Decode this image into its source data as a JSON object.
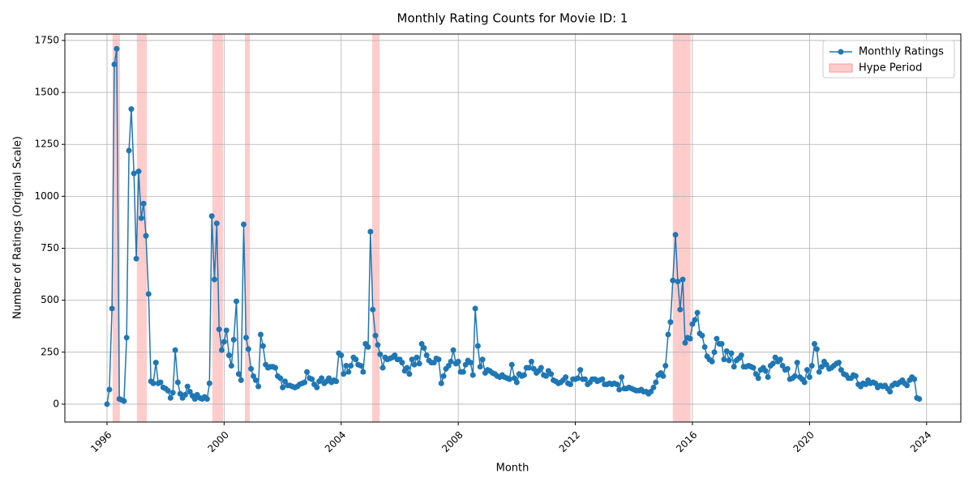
{
  "chart_data": {
    "type": "line",
    "title": "Monthly Rating Counts for Movie ID: 1",
    "x_label": "Month",
    "y_label": "Number of Ratings (Original Scale)",
    "x": [
      1996.0,
      1996.08,
      1996.17,
      1996.25,
      1996.33,
      1996.42,
      1996.5,
      1996.58,
      1996.67,
      1996.75,
      1996.83,
      1996.92,
      1997.0,
      1997.08,
      1997.17,
      1997.25,
      1997.33,
      1997.42,
      1997.5,
      1997.58,
      1997.67,
      1997.75,
      1997.83,
      1997.92,
      1998.0,
      1998.08,
      1998.17,
      1998.25,
      1998.33,
      1998.42,
      1998.5,
      1998.58,
      1998.67,
      1998.75,
      1998.83,
      1998.92,
      1999.0,
      1999.08,
      1999.17,
      1999.25,
      1999.33,
      1999.42,
      1999.5,
      1999.58,
      1999.67,
      1999.75,
      1999.83,
      1999.92,
      2000.0,
      2000.08,
      2000.17,
      2000.25,
      2000.33,
      2000.42,
      2000.5,
      2000.58,
      2000.67,
      2000.75,
      2000.83,
      2000.92,
      2001.0,
      2001.08,
      2001.17,
      2001.25,
      2001.33,
      2001.42,
      2001.5,
      2001.58,
      2001.67,
      2001.75,
      2001.83,
      2001.92,
      2002.0,
      2002.08,
      2002.17,
      2002.25,
      2002.33,
      2002.42,
      2002.5,
      2002.58,
      2002.67,
      2002.75,
      2002.83,
      2002.92,
      2003.0,
      2003.08,
      2003.17,
      2003.25,
      2003.33,
      2003.42,
      2003.5,
      2003.58,
      2003.67,
      2003.75,
      2003.83,
      2003.92,
      2004.0,
      2004.08,
      2004.17,
      2004.25,
      2004.33,
      2004.42,
      2004.5,
      2004.58,
      2004.67,
      2004.75,
      2004.83,
      2004.92,
      2005.0,
      2005.08,
      2005.17,
      2005.25,
      2005.33,
      2005.42,
      2005.5,
      2005.58,
      2005.67,
      2005.75,
      2005.83,
      2005.92,
      2006.0,
      2006.08,
      2006.17,
      2006.25,
      2006.33,
      2006.42,
      2006.5,
      2006.58,
      2006.67,
      2006.75,
      2006.83,
      2006.92,
      2007.0,
      2007.08,
      2007.17,
      2007.25,
      2007.33,
      2007.42,
      2007.5,
      2007.58,
      2007.67,
      2007.75,
      2007.83,
      2007.92,
      2008.0,
      2008.08,
      2008.17,
      2008.25,
      2008.33,
      2008.42,
      2008.5,
      2008.58,
      2008.67,
      2008.75,
      2008.83,
      2008.92,
      2009.0,
      2009.08,
      2009.17,
      2009.25,
      2009.33,
      2009.42,
      2009.5,
      2009.58,
      2009.67,
      2009.75,
      2009.83,
      2009.92,
      2010.0,
      2010.08,
      2010.17,
      2010.25,
      2010.33,
      2010.42,
      2010.5,
      2010.58,
      2010.67,
      2010.75,
      2010.83,
      2010.92,
      2011.0,
      2011.08,
      2011.17,
      2011.25,
      2011.33,
      2011.42,
      2011.5,
      2011.58,
      2011.67,
      2011.75,
      2011.83,
      2011.92,
      2012.0,
      2012.08,
      2012.17,
      2012.25,
      2012.33,
      2012.42,
      2012.5,
      2012.58,
      2012.67,
      2012.75,
      2012.83,
      2012.92,
      2013.0,
      2013.08,
      2013.17,
      2013.25,
      2013.33,
      2013.42,
      2013.5,
      2013.58,
      2013.67,
      2013.75,
      2013.83,
      2013.92,
      2014.0,
      2014.08,
      2014.17,
      2014.25,
      2014.33,
      2014.42,
      2014.5,
      2014.58,
      2014.67,
      2014.75,
      2014.83,
      2014.92,
      2015.0,
      2015.08,
      2015.17,
      2015.25,
      2015.33,
      2015.42,
      2015.5,
      2015.58,
      2015.67,
      2015.75,
      2015.83,
      2015.92,
      2016.0,
      2016.08,
      2016.17,
      2016.25,
      2016.33,
      2016.42,
      2016.5,
      2016.58,
      2016.67,
      2016.75,
      2016.83,
      2016.92,
      2017.0,
      2017.08,
      2017.17,
      2017.25,
      2017.33,
      2017.42,
      2017.5,
      2017.58,
      2017.67,
      2017.75,
      2017.83,
      2017.92,
      2018.0,
      2018.08,
      2018.17,
      2018.25,
      2018.33,
      2018.42,
      2018.5,
      2018.58,
      2018.67,
      2018.75,
      2018.83,
      2018.92,
      2019.0,
      2019.08,
      2019.17,
      2019.25,
      2019.33,
      2019.42,
      2019.5,
      2019.58,
      2019.67,
      2019.75,
      2019.83,
      2019.92,
      2020.0,
      2020.08,
      2020.17,
      2020.25,
      2020.33,
      2020.42,
      2020.5,
      2020.58,
      2020.67,
      2020.75,
      2020.83,
      2020.92,
      2021.0,
      2021.08,
      2021.17,
      2021.25,
      2021.33,
      2021.42,
      2021.5,
      2021.58,
      2021.67,
      2021.75,
      2021.83,
      2021.92,
      2022.0,
      2022.08,
      2022.17,
      2022.25,
      2022.33,
      2022.42,
      2022.5,
      2022.58,
      2022.67,
      2022.75,
      2022.83,
      2022.92,
      2023.0,
      2023.08,
      2023.17,
      2023.25,
      2023.33,
      2023.42,
      2023.5,
      2023.58,
      2023.67,
      2023.75
    ],
    "series": [
      {
        "name": "Monthly Ratings",
        "color": "#1f77b4",
        "values": [
          0,
          70,
          460,
          1635,
          1710,
          25,
          20,
          15,
          320,
          1220,
          1420,
          1110,
          700,
          1120,
          895,
          965,
          810,
          530,
          110,
          100,
          200,
          100,
          105,
          80,
          75,
          65,
          30,
          55,
          260,
          105,
          50,
          30,
          45,
          85,
          60,
          40,
          25,
          45,
          30,
          25,
          35,
          25,
          100,
          905,
          600,
          870,
          360,
          260,
          300,
          355,
          235,
          185,
          310,
          495,
          145,
          115,
          865,
          320,
          265,
          170,
          135,
          115,
          85,
          335,
          280,
          190,
          175,
          180,
          180,
          175,
          135,
          125,
          80,
          110,
          90,
          90,
          85,
          80,
          85,
          95,
          100,
          105,
          155,
          125,
          120,
          95,
          80,
          110,
          125,
          100,
          110,
          125,
          105,
          115,
          110,
          245,
          235,
          145,
          185,
          155,
          185,
          225,
          215,
          190,
          185,
          155,
          290,
          275,
          830,
          455,
          330,
          285,
          240,
          175,
          225,
          215,
          220,
          225,
          235,
          215,
          215,
          200,
          160,
          175,
          145,
          215,
          190,
          225,
          195,
          290,
          270,
          235,
          210,
          200,
          200,
          220,
          215,
          100,
          135,
          170,
          185,
          205,
          260,
          195,
          205,
          155,
          155,
          190,
          210,
          200,
          140,
          460,
          280,
          180,
          215,
          150,
          165,
          160,
          150,
          145,
          135,
          130,
          140,
          130,
          125,
          120,
          190,
          125,
          105,
          145,
          135,
          140,
          175,
          175,
          205,
          170,
          150,
          160,
          175,
          140,
          135,
          160,
          145,
          115,
          110,
          100,
          105,
          115,
          130,
          100,
          95,
          120,
          120,
          125,
          165,
          120,
          120,
          95,
          105,
          120,
          120,
          110,
          115,
          120,
          95,
          95,
          100,
          95,
          100,
          95,
          70,
          130,
          75,
          75,
          80,
          75,
          70,
          65,
          65,
          70,
          60,
          60,
          50,
          60,
          80,
          105,
          140,
          150,
          135,
          185,
          335,
          395,
          595,
          815,
          590,
          455,
          600,
          295,
          320,
          315,
          385,
          405,
          440,
          340,
          330,
          275,
          230,
          215,
          205,
          250,
          315,
          290,
          290,
          215,
          255,
          210,
          245,
          180,
          210,
          220,
          235,
          180,
          180,
          185,
          180,
          175,
          145,
          125,
          165,
          175,
          160,
          130,
          185,
          195,
          225,
          205,
          215,
          185,
          165,
          170,
          120,
          125,
          135,
          200,
          130,
          120,
          105,
          165,
          130,
          185,
          290,
          265,
          155,
          180,
          205,
          190,
          170,
          175,
          185,
          195,
          200,
          165,
          145,
          140,
          125,
          125,
          140,
          135,
          95,
          85,
          100,
          95,
          115,
          100,
          105,
          100,
          80,
          90,
          85,
          90,
          75,
          60,
          90,
          100,
          95,
          105,
          115,
          100,
          90,
          115,
          130,
          120,
          30,
          25
        ]
      }
    ],
    "spans": {
      "name": "Hype Period",
      "color": "#ff9999",
      "ranges": [
        [
          1996.19,
          1996.44
        ],
        [
          1997.02,
          1997.36
        ],
        [
          1999.6,
          1999.96
        ],
        [
          2000.71,
          2000.88
        ],
        [
          2005.06,
          2005.31
        ],
        [
          2015.33,
          2015.94
        ]
      ]
    },
    "xlim": [
      1994.56,
      2025.17
    ],
    "xticks": [
      1996,
      2000,
      2004,
      2008,
      2012,
      2016,
      2020,
      2024
    ],
    "ylim": [
      -86,
      1781
    ],
    "yticks": [
      0,
      250,
      500,
      750,
      1000,
      1250,
      1500,
      1750
    ],
    "grid": true,
    "legend": "upper right"
  }
}
